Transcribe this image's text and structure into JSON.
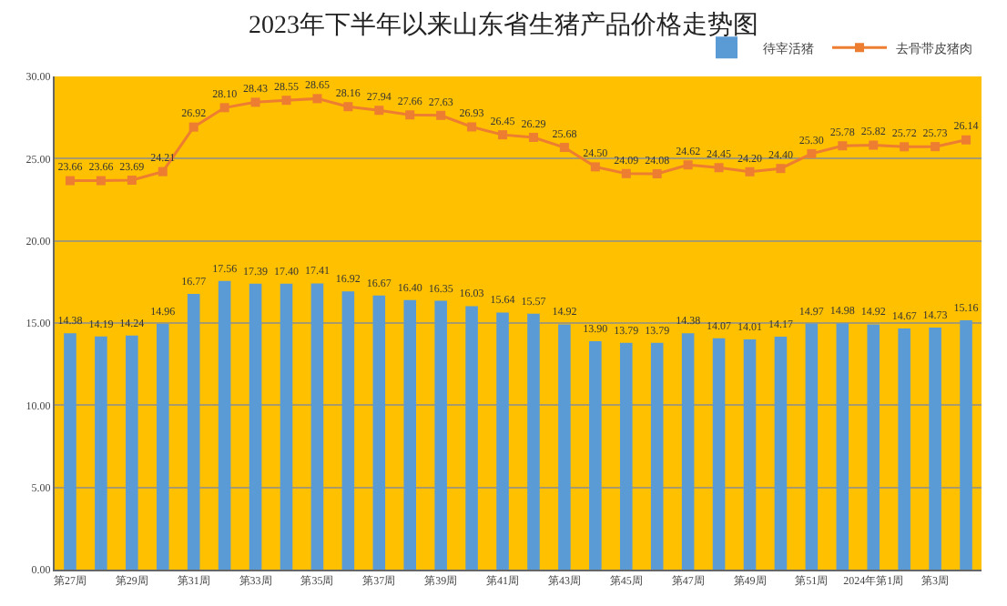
{
  "chart_data": {
    "type": "bar",
    "title": "2023年下半年以来山东省生猪产品价格走势图",
    "categories": [
      "第27周",
      null,
      "第29周",
      null,
      "第31周",
      null,
      "第33周",
      null,
      "第35周",
      null,
      "第37周",
      null,
      "第39周",
      null,
      "第41周",
      null,
      "第43周",
      null,
      "第45周",
      null,
      "第47周",
      null,
      "第49周",
      null,
      "第51周",
      null,
      "2024年第1周",
      null,
      "第3周",
      null
    ],
    "series": [
      {
        "name": "待宰活猪",
        "color": "#5b9bd5",
        "values": [
          14.38,
          14.19,
          14.24,
          14.96,
          16.77,
          17.56,
          17.39,
          17.4,
          17.41,
          16.92,
          16.67,
          16.4,
          16.35,
          16.03,
          15.64,
          15.57,
          14.92,
          13.9,
          13.79,
          13.79,
          14.38,
          14.07,
          14.01,
          14.17,
          14.97,
          14.98,
          14.92,
          14.67,
          14.73,
          15.16
        ],
        "value_labels": [
          "14.38",
          "14.19",
          "14.24",
          "14.96",
          "16.77",
          "17.56",
          "17.39",
          "17.40",
          "17.41",
          "16.92",
          "16.67",
          "16.40",
          "16.35",
          "16.03",
          "15.64",
          "15.57",
          "14.92",
          "13.90",
          "13.79",
          "13.79",
          "14.38",
          "14.07",
          "14.01",
          "14.17",
          "14.97",
          "14.98",
          "14.92",
          "14.67",
          "14.73",
          "15.16"
        ]
      },
      {
        "name": "去骨带皮猪肉",
        "type": "line",
        "color": "#ed7d31",
        "marker": "square",
        "values": [
          23.66,
          23.66,
          23.69,
          24.21,
          26.92,
          28.1,
          28.43,
          28.55,
          28.65,
          28.16,
          27.94,
          27.66,
          27.63,
          26.93,
          26.45,
          26.29,
          25.68,
          24.5,
          24.09,
          24.08,
          24.62,
          24.45,
          24.2,
          24.4,
          25.3,
          25.78,
          25.82,
          25.72,
          25.73,
          26.14
        ],
        "value_labels": [
          "23.66",
          "23.66",
          "23.69",
          "24.21",
          "26.92",
          "28.10",
          "28.43",
          "28.55",
          "28.65",
          "28.16",
          "27.94",
          "27.66",
          "27.63",
          "26.93",
          "26.45",
          "26.29",
          "25.68",
          "24.50",
          "24.09",
          "24.08",
          "24.62",
          "24.45",
          "24.20",
          "24.40",
          "25.30",
          "25.78",
          "25.82",
          "25.72",
          "25.73",
          "26.14"
        ]
      }
    ],
    "ylim": [
      0,
      30
    ],
    "yticks": [
      {
        "value": 0,
        "label": "0.00"
      },
      {
        "value": 5,
        "label": "5.00"
      },
      {
        "value": 10,
        "label": "10.00"
      },
      {
        "value": 15,
        "label": "15.00"
      },
      {
        "value": 20,
        "label": "20.00"
      },
      {
        "value": 25,
        "label": "25.00"
      },
      {
        "value": 30,
        "label": "30.00"
      }
    ],
    "grid": "y",
    "legend": "top right"
  }
}
